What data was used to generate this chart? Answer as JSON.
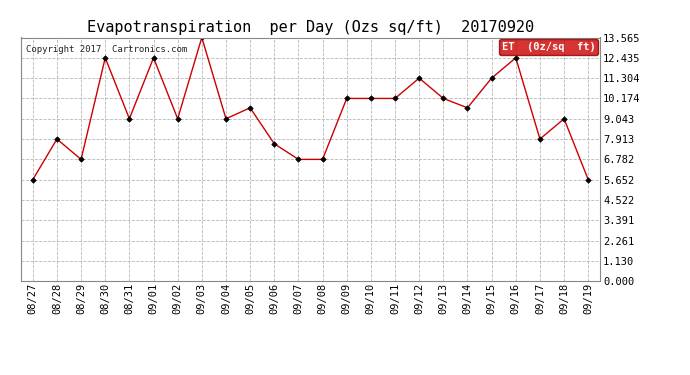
{
  "title": "Evapotranspiration  per Day (Ozs sq/ft)  20170920",
  "copyright": "Copyright 2017  Cartronics.com",
  "legend_label": "ET  (0z/sq  ft)",
  "x_labels": [
    "08/27",
    "08/28",
    "08/29",
    "08/30",
    "08/31",
    "09/01",
    "09/02",
    "09/03",
    "09/04",
    "09/05",
    "09/06",
    "09/07",
    "09/08",
    "09/09",
    "09/10",
    "09/11",
    "09/12",
    "09/13",
    "09/14",
    "09/15",
    "09/16",
    "09/17",
    "09/18",
    "09/19"
  ],
  "y_values": [
    5.652,
    7.913,
    6.782,
    12.435,
    9.043,
    12.435,
    9.043,
    13.565,
    9.043,
    9.652,
    7.652,
    6.782,
    6.782,
    10.174,
    10.174,
    10.174,
    11.304,
    10.174,
    9.652,
    11.304,
    12.435,
    7.913,
    9.043,
    5.652
  ],
  "y_ticks": [
    0.0,
    1.13,
    2.261,
    3.391,
    4.522,
    5.652,
    6.782,
    7.913,
    9.043,
    10.174,
    11.304,
    12.435,
    13.565
  ],
  "y_min": 0.0,
  "y_max": 13.565,
  "line_color": "#cc0000",
  "marker_color": "#000000",
  "bg_color": "#ffffff",
  "grid_color": "#b0b0b0",
  "title_fontsize": 11,
  "tick_fontsize": 7.5,
  "copyright_fontsize": 6.5,
  "legend_bg": "#cc0000",
  "legend_text_color": "#ffffff"
}
